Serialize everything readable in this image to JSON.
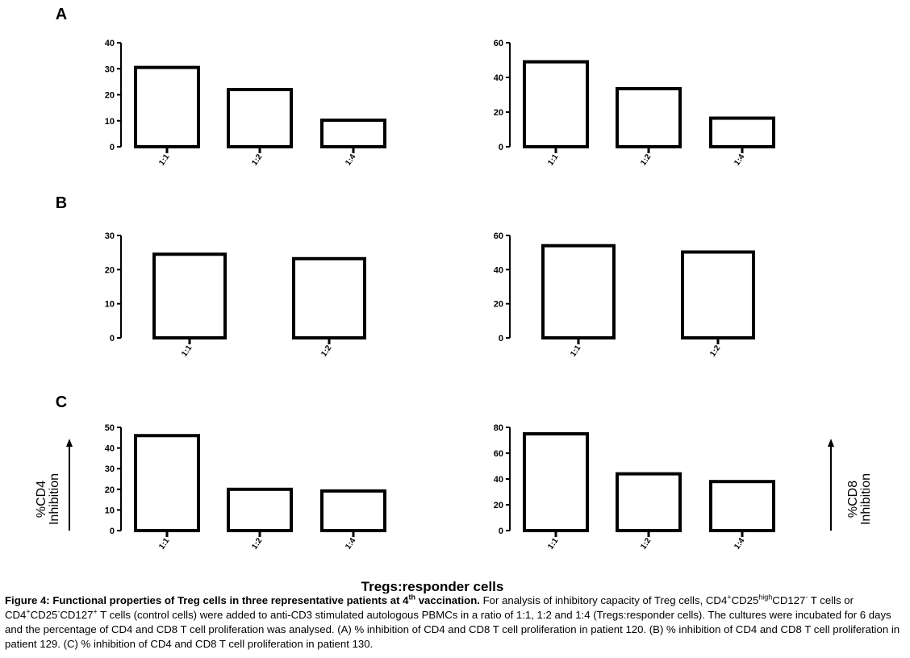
{
  "panels": [
    {
      "label": "A",
      "charts": [
        {
          "categories": [
            "1:1",
            "1:2",
            "1:4"
          ],
          "values": [
            30.5,
            22,
            10.2
          ],
          "ylim": [
            0,
            40
          ],
          "yticks": [
            0,
            10,
            20,
            30,
            40
          ]
        },
        {
          "categories": [
            "1:1",
            "1:2",
            "1:4"
          ],
          "values": [
            49,
            33.5,
            16.5
          ],
          "ylim": [
            0,
            60
          ],
          "yticks": [
            0,
            20,
            40,
            60
          ]
        }
      ]
    },
    {
      "label": "B",
      "charts": [
        {
          "categories": [
            "1:1",
            "1:2"
          ],
          "values": [
            24.5,
            23.2
          ],
          "ylim": [
            0,
            30
          ],
          "yticks": [
            0,
            10,
            20,
            30
          ]
        },
        {
          "categories": [
            "1:1",
            "1:2"
          ],
          "values": [
            54,
            50.3
          ],
          "ylim": [
            0,
            60
          ],
          "yticks": [
            0,
            20,
            40,
            60
          ]
        }
      ]
    },
    {
      "label": "C",
      "charts": [
        {
          "categories": [
            "1:1",
            "1:2",
            "1:4"
          ],
          "values": [
            46,
            20,
            19.2
          ],
          "ylim": [
            0,
            50
          ],
          "yticks": [
            0,
            10,
            20,
            30,
            40,
            50
          ]
        },
        {
          "categories": [
            "1:1",
            "1:2",
            "1:4"
          ],
          "values": [
            75,
            44,
            38
          ],
          "ylim": [
            0,
            80
          ],
          "yticks": [
            0,
            20,
            40,
            60,
            80
          ]
        }
      ]
    }
  ],
  "chart_data": [
    {
      "type": "bar",
      "panel": "A",
      "position": "left",
      "categories": [
        "1:1",
        "1:2",
        "1:4"
      ],
      "values": [
        30.5,
        22,
        10.2
      ],
      "ylim": [
        0,
        40
      ],
      "xlabel": "Tregs:responder cells",
      "ylabel": "%CD4 Inhibition"
    },
    {
      "type": "bar",
      "panel": "A",
      "position": "right",
      "categories": [
        "1:1",
        "1:2",
        "1:4"
      ],
      "values": [
        49,
        33.5,
        16.5
      ],
      "ylim": [
        0,
        60
      ],
      "xlabel": "Tregs:responder cells",
      "ylabel": "%CD8 Inhibition"
    },
    {
      "type": "bar",
      "panel": "B",
      "position": "left",
      "categories": [
        "1:1",
        "1:2"
      ],
      "values": [
        24.5,
        23.2
      ],
      "ylim": [
        0,
        30
      ],
      "xlabel": "Tregs:responder cells",
      "ylabel": "%CD4 Inhibition"
    },
    {
      "type": "bar",
      "panel": "B",
      "position": "right",
      "categories": [
        "1:1",
        "1:2"
      ],
      "values": [
        54,
        50.3
      ],
      "ylim": [
        0,
        60
      ],
      "xlabel": "Tregs:responder cells",
      "ylabel": "%CD8 Inhibition"
    },
    {
      "type": "bar",
      "panel": "C",
      "position": "left",
      "categories": [
        "1:1",
        "1:2",
        "1:4"
      ],
      "values": [
        46,
        20,
        19.2
      ],
      "ylim": [
        0,
        50
      ],
      "xlabel": "Tregs:responder cells",
      "ylabel": "%CD4 Inhibition"
    },
    {
      "type": "bar",
      "panel": "C",
      "position": "right",
      "categories": [
        "1:1",
        "1:2",
        "1:4"
      ],
      "values": [
        75,
        44,
        38
      ],
      "ylim": [
        0,
        80
      ],
      "xlabel": "Tregs:responder cells",
      "ylabel": "%CD8 Inhibition"
    }
  ],
  "ylabel_left": {
    "line1": "%CD4",
    "line2": "Inhibition"
  },
  "ylabel_right": {
    "line1": "%CD8",
    "line2": "Inhibition"
  },
  "xlabel": "Tregs:responder cells",
  "caption": {
    "lead": "Figure 4: Functional properties of Treg cells in three representative patients at 4",
    "lead_sup": "th",
    "lead_end": " vaccination.",
    "p1": " For analysis of inhibitory capacity of Treg cells, CD4",
    "s1": "+",
    "p2": "CD25",
    "s2": "high",
    "p3": "CD127",
    "s3": "-",
    "p4": " T cells or CD4",
    "s4": "+",
    "p5": "CD25",
    "s5": "-",
    "p6": "CD127",
    "s6": "+",
    "p7": " T cells (control cells) were added to anti-CD3 stimulated autologous PBMCs in a ratio of 1:1, 1:2 and 1:4 (Tregs:responder cells). The cultures were incubated for 6 days and the percentage of CD4 and CD8 T cell proliferation was analysed. (A) % inhibition of CD4 and CD8 T cell proliferation in patient 120. (B) % inhibition of CD4 and CD8 T cell proliferation in patient 129. (C) % inhibition of CD4 and CD8 T cell proliferation in patient 130."
  }
}
